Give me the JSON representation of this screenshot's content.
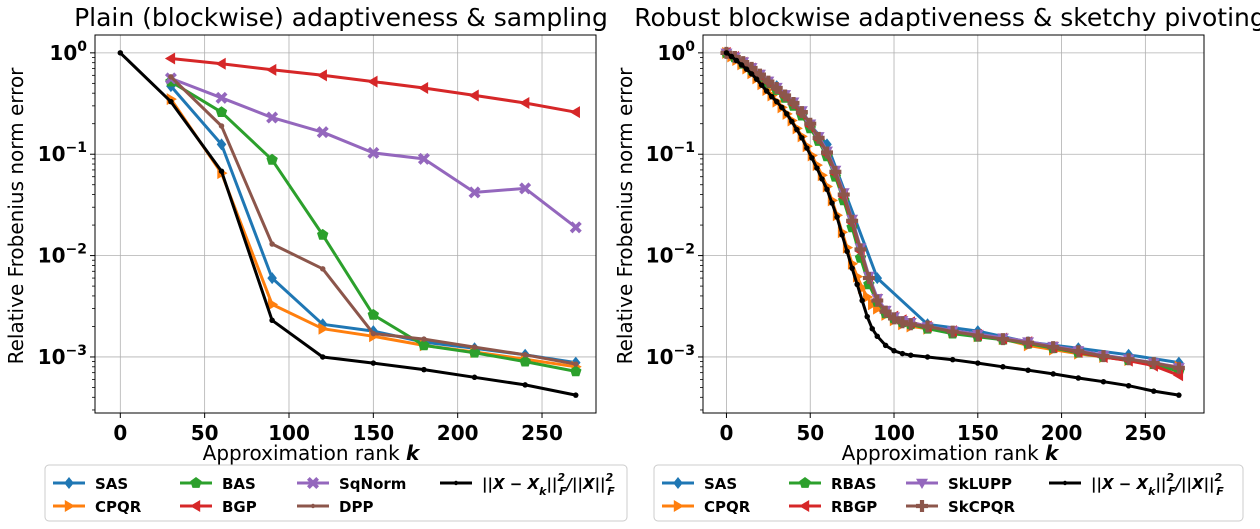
{
  "chart_data": [
    {
      "type": "line",
      "title": "Plain (blockwise) adaptiveness & sampling",
      "xlabel": "Approximation rank",
      "xlabel_var": "k",
      "ylabel": "Relative Frobenius norm error",
      "xlim": [
        -15,
        282
      ],
      "ylim": [
        0.00028,
        1.5
      ],
      "yscale": "log",
      "xticks": [
        "0",
        "50",
        "100",
        "150",
        "200",
        "250"
      ],
      "yticks": [
        {
          "base": "10",
          "exp": "0"
        },
        {
          "base": "10",
          "exp": "−1"
        },
        {
          "base": "10",
          "exp": "−2"
        },
        {
          "base": "10",
          "exp": "−3"
        }
      ],
      "grid": true,
      "legend_position": "below",
      "series": [
        {
          "name": "SAS",
          "color": "#1f77b4",
          "marker": "diamond",
          "x": [
            30,
            60,
            90,
            120,
            150,
            180,
            210,
            240,
            270
          ],
          "y": [
            0.47,
            0.125,
            0.006,
            0.0021,
            0.0018,
            0.0014,
            0.00122,
            0.00105,
            0.00088
          ]
        },
        {
          "name": "CPQR",
          "color": "#ff7f0e",
          "marker": "triangle-right",
          "x": [
            30,
            60,
            90,
            120,
            150,
            180,
            210,
            240,
            270
          ],
          "y": [
            0.35,
            0.065,
            0.0033,
            0.0019,
            0.0016,
            0.0013,
            0.00112,
            0.00095,
            0.0008
          ]
        },
        {
          "name": "BAS",
          "color": "#2ca02c",
          "marker": "pentagon",
          "x": [
            30,
            60,
            90,
            120,
            150,
            180,
            210,
            240,
            270
          ],
          "y": [
            0.52,
            0.26,
            0.088,
            0.016,
            0.0026,
            0.0013,
            0.0011,
            0.0009,
            0.00072
          ]
        },
        {
          "name": "BGP",
          "color": "#d62728",
          "marker": "triangle-left",
          "x": [
            30,
            60,
            90,
            120,
            150,
            180,
            210,
            240,
            270
          ],
          "y": [
            0.88,
            0.78,
            0.68,
            0.6,
            0.52,
            0.45,
            0.38,
            0.32,
            0.26
          ]
        },
        {
          "name": "SqNorm",
          "color": "#9467bd",
          "marker": "x",
          "x": [
            30,
            60,
            90,
            120,
            150,
            180,
            210,
            240,
            270
          ],
          "y": [
            0.56,
            0.36,
            0.23,
            0.165,
            0.103,
            0.09,
            0.042,
            0.046,
            0.019
          ]
        },
        {
          "name": "DPP",
          "color": "#8c564b",
          "marker": "dot",
          "x": [
            30,
            60,
            90,
            120,
            150,
            180,
            210,
            240,
            270
          ],
          "y": [
            0.58,
            0.19,
            0.013,
            0.0074,
            0.0017,
            0.0015,
            0.00125,
            0.00105,
            0.00085
          ]
        },
        {
          "name": "||X − X_k||_F^2/||X||_F^2",
          "color": "#000000",
          "marker": "dot",
          "x": [
            0,
            30,
            60,
            90,
            120,
            150,
            180,
            210,
            240,
            270
          ],
          "y": [
            1.0,
            0.33,
            0.068,
            0.0023,
            0.001,
            0.00087,
            0.00075,
            0.00063,
            0.00053,
            0.00042
          ]
        }
      ],
      "legend": [
        {
          "label": "SAS",
          "series": 0
        },
        {
          "label": "CPQR",
          "series": 1
        },
        {
          "label": "BAS",
          "series": 2
        },
        {
          "label": "BGP",
          "series": 3
        },
        {
          "label": "SqNorm",
          "series": 4
        },
        {
          "label": "DPP",
          "series": 5
        },
        {
          "label": "||X − X_k||_F^2/||X||_F^2",
          "series": 6
        }
      ]
    },
    {
      "type": "line",
      "title": "Robust blockwise adaptiveness & sketchy pivoting",
      "xlabel": "Approximation rank",
      "xlabel_var": "k",
      "ylabel": "Relative Frobenius norm error",
      "xlim": [
        -14,
        285
      ],
      "ylim": [
        0.00028,
        1.5
      ],
      "yscale": "log",
      "xticks": [
        "0",
        "50",
        "100",
        "150",
        "200",
        "250"
      ],
      "yticks": [
        {
          "base": "10",
          "exp": "0"
        },
        {
          "base": "10",
          "exp": "−1"
        },
        {
          "base": "10",
          "exp": "−2"
        },
        {
          "base": "10",
          "exp": "−3"
        }
      ],
      "grid": true,
      "legend_position": "below",
      "series": [
        {
          "name": "SAS",
          "color": "#1f77b4",
          "marker": "diamond",
          "x": [
            0,
            30,
            60,
            90,
            120,
            150,
            180,
            210,
            240,
            270
          ],
          "y": [
            1.0,
            0.47,
            0.125,
            0.006,
            0.0021,
            0.0018,
            0.0014,
            0.00122,
            0.00105,
            0.00088
          ]
        },
        {
          "name": "CPQR",
          "color": "#ff7f0e",
          "marker": "triangle-right",
          "x": [
            0,
            3,
            6,
            9,
            12,
            15,
            18,
            21,
            24,
            27,
            30,
            33,
            36,
            39,
            42,
            45,
            48,
            51,
            54,
            57,
            60,
            63,
            66,
            69,
            72,
            75,
            78,
            81,
            84,
            87,
            90,
            95,
            100,
            105,
            110,
            120,
            135,
            150,
            165,
            180,
            195,
            210,
            225,
            240,
            255,
            270
          ],
          "y": [
            1.0,
            0.92,
            0.85,
            0.77,
            0.7,
            0.63,
            0.56,
            0.49,
            0.43,
            0.38,
            0.33,
            0.29,
            0.25,
            0.215,
            0.18,
            0.15,
            0.12,
            0.097,
            0.078,
            0.062,
            0.048,
            0.035,
            0.025,
            0.017,
            0.012,
            0.0083,
            0.0062,
            0.0048,
            0.0039,
            0.0033,
            0.003,
            0.0026,
            0.0023,
            0.0021,
            0.002,
            0.0019,
            0.00175,
            0.0016,
            0.0015,
            0.0013,
            0.00118,
            0.00108,
            0.001,
            0.00093,
            0.00086,
            0.0008
          ]
        },
        {
          "name": "RBAS",
          "color": "#2ca02c",
          "marker": "pentagon",
          "x": [
            0,
            5,
            10,
            15,
            20,
            25,
            30,
            35,
            40,
            45,
            50,
            55,
            60,
            65,
            70,
            75,
            80,
            85,
            90,
            95,
            100,
            105,
            110,
            120,
            135,
            150,
            165,
            180,
            195,
            210,
            225,
            240,
            255,
            270
          ],
          "y": [
            1.0,
            0.9,
            0.78,
            0.68,
            0.58,
            0.5,
            0.43,
            0.36,
            0.3,
            0.24,
            0.18,
            0.135,
            0.095,
            0.06,
            0.035,
            0.019,
            0.0095,
            0.0052,
            0.0035,
            0.0027,
            0.0024,
            0.0022,
            0.0021,
            0.0019,
            0.0017,
            0.00158,
            0.00148,
            0.00135,
            0.00122,
            0.0011,
            0.001,
            0.00093,
            0.00085,
            0.00072
          ]
        },
        {
          "name": "RBGP",
          "color": "#d62728",
          "marker": "triangle-left",
          "x": [
            0,
            5,
            10,
            15,
            20,
            25,
            30,
            35,
            40,
            45,
            50,
            55,
            60,
            65,
            70,
            75,
            80,
            85,
            90,
            95,
            100,
            105,
            110,
            120,
            135,
            150,
            165,
            180,
            195,
            210,
            225,
            240,
            255,
            270
          ],
          "y": [
            1.0,
            0.91,
            0.8,
            0.7,
            0.6,
            0.51,
            0.44,
            0.37,
            0.31,
            0.25,
            0.19,
            0.14,
            0.1,
            0.064,
            0.038,
            0.021,
            0.011,
            0.006,
            0.0037,
            0.0028,
            0.0025,
            0.0023,
            0.0022,
            0.002,
            0.0018,
            0.00165,
            0.00152,
            0.0014,
            0.00125,
            0.00112,
            0.001,
            0.00092,
            0.00082,
            0.00066
          ]
        },
        {
          "name": "SkLUPP",
          "color": "#9467bd",
          "marker": "triangle-down",
          "x": [
            0,
            5,
            10,
            15,
            20,
            25,
            30,
            35,
            40,
            45,
            50,
            55,
            60,
            65,
            70,
            75,
            80,
            85,
            90,
            95,
            100,
            105,
            110,
            120,
            135,
            150,
            165,
            180,
            195,
            210,
            225,
            240,
            255,
            270
          ],
          "y": [
            1.0,
            0.92,
            0.82,
            0.72,
            0.62,
            0.53,
            0.46,
            0.39,
            0.33,
            0.27,
            0.2,
            0.15,
            0.108,
            0.07,
            0.042,
            0.023,
            0.012,
            0.0063,
            0.0038,
            0.0029,
            0.0025,
            0.0023,
            0.0022,
            0.002,
            0.00182,
            0.00168,
            0.00155,
            0.00142,
            0.00128,
            0.00116,
            0.00104,
            0.00096,
            0.00088,
            0.00079
          ]
        },
        {
          "name": "SkCPQR",
          "color": "#8c564b",
          "marker": "plus",
          "x": [
            0,
            5,
            10,
            15,
            20,
            25,
            30,
            35,
            40,
            45,
            50,
            55,
            60,
            65,
            70,
            75,
            80,
            85,
            90,
            95,
            100,
            105,
            110,
            120,
            135,
            150,
            165,
            180,
            195,
            210,
            225,
            240,
            255,
            270
          ],
          "y": [
            1.0,
            0.91,
            0.81,
            0.71,
            0.61,
            0.52,
            0.45,
            0.38,
            0.32,
            0.26,
            0.2,
            0.145,
            0.104,
            0.067,
            0.04,
            0.022,
            0.0115,
            0.006,
            0.0036,
            0.0028,
            0.0024,
            0.0022,
            0.0021,
            0.002,
            0.00178,
            0.00163,
            0.0015,
            0.00138,
            0.00125,
            0.00114,
            0.00102,
            0.00095,
            0.00087,
            0.00078
          ]
        },
        {
          "name": "||X − X_k||_F^2/||X||_F^2",
          "color": "#000000",
          "marker": "dot",
          "x": [
            0,
            3,
            6,
            9,
            12,
            15,
            18,
            21,
            24,
            27,
            30,
            33,
            36,
            39,
            42,
            45,
            48,
            51,
            54,
            57,
            60,
            63,
            66,
            69,
            72,
            75,
            78,
            81,
            84,
            87,
            90,
            95,
            100,
            105,
            110,
            120,
            135,
            150,
            165,
            180,
            195,
            210,
            225,
            240,
            255,
            270
          ],
          "y": [
            1.0,
            0.92,
            0.84,
            0.76,
            0.69,
            0.62,
            0.55,
            0.48,
            0.42,
            0.37,
            0.33,
            0.29,
            0.25,
            0.21,
            0.175,
            0.145,
            0.115,
            0.092,
            0.073,
            0.057,
            0.045,
            0.033,
            0.024,
            0.016,
            0.011,
            0.0075,
            0.0052,
            0.0036,
            0.0025,
            0.0019,
            0.0016,
            0.0013,
            0.00115,
            0.00108,
            0.00104,
            0.001,
            0.00094,
            0.00087,
            0.0008,
            0.00074,
            0.00068,
            0.00062,
            0.00057,
            0.00052,
            0.00046,
            0.00042
          ]
        }
      ],
      "legend": [
        {
          "label": "SAS",
          "series": 0
        },
        {
          "label": "CPQR",
          "series": 1
        },
        {
          "label": "RBAS",
          "series": 2
        },
        {
          "label": "RBGP",
          "series": 3
        },
        {
          "label": "SkLUPP",
          "series": 4
        },
        {
          "label": "SkCPQR",
          "series": 5
        },
        {
          "label": "||X − X_k||_F^2/||X||_F^2",
          "series": 6
        }
      ]
    }
  ]
}
